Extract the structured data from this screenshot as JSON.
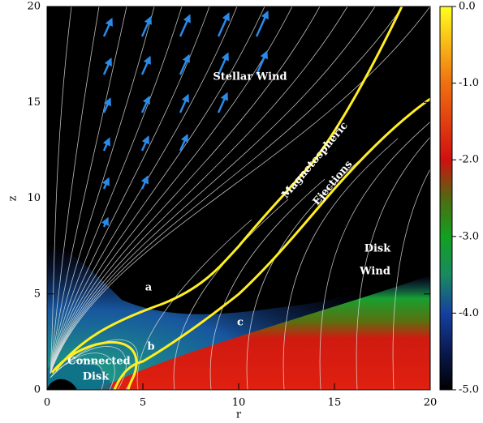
{
  "chart_data": {
    "type": "heatmap",
    "xlabel": "r",
    "ylabel": "z",
    "xlim": [
      0,
      20
    ],
    "ylim": [
      0,
      20
    ],
    "xticks": [
      0,
      5,
      10,
      15,
      20
    ],
    "yticks": [
      0,
      5,
      10,
      15,
      20
    ],
    "colorbar": {
      "lim": [
        -5,
        0
      ],
      "ticks": [
        {
          "value": 0,
          "label": "0.0"
        },
        {
          "value": -1,
          "label": "-1.0"
        },
        {
          "value": -2,
          "label": "-2.0"
        },
        {
          "value": -3,
          "label": "-3.0"
        },
        {
          "value": -4,
          "label": "-4.0"
        },
        {
          "value": -5,
          "label": "-5.0"
        }
      ]
    },
    "annotations": {
      "stellar_wind": "Stellar Wind",
      "ejections": [
        "Magnetospheric",
        "Ejections"
      ],
      "disk_wind": [
        "Disk",
        "Wind"
      ],
      "a": "a",
      "b": "b",
      "c": "c",
      "connected_disk": [
        "Connected",
        "Disk"
      ]
    }
  }
}
